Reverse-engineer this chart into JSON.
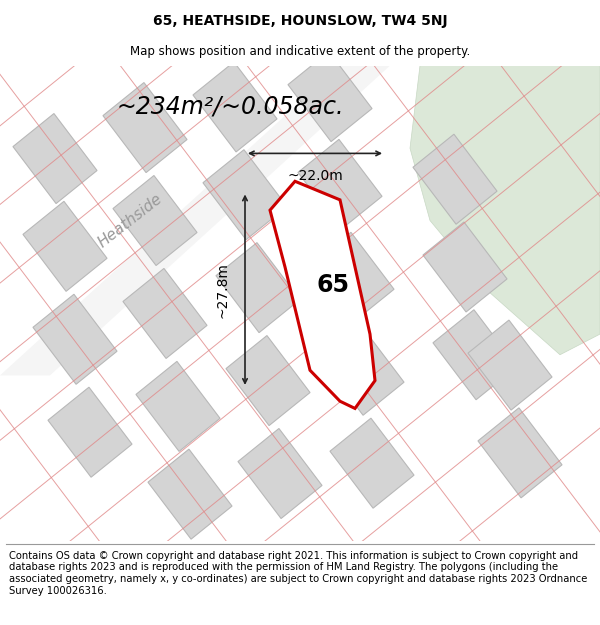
{
  "title": "65, HEATHSIDE, HOUNSLOW, TW4 5NJ",
  "subtitle": "Map shows position and indicative extent of the property.",
  "footer": "Contains OS data © Crown copyright and database right 2021. This information is subject to Crown copyright and database rights 2023 and is reproduced with the permission of HM Land Registry. The polygons (including the associated geometry, namely x, y co-ordinates) are subject to Crown copyright and database rights 2023 Ordnance Survey 100026316.",
  "area_label": "~234m²/~0.058ac.",
  "width_label": "~22.0m",
  "height_label": "~27.8m",
  "plot_number": "65",
  "bg_color": "#ebebeb",
  "building_fill": "#d4d4d4",
  "building_stroke": "#b8b8b8",
  "plot_fill": "white",
  "plot_stroke": "#cc0000",
  "dim_line_color": "#222222",
  "green_fill": "#dce8d8",
  "green_stroke": "#c8d8c4",
  "road_fill": "#f5f5f5",
  "red_line_color": "#e07070",
  "title_fontsize": 10,
  "subtitle_fontsize": 8.5,
  "area_label_fontsize": 17,
  "plot_number_fontsize": 17,
  "dim_label_fontsize": 10,
  "street_label_fontsize": 11,
  "footer_fontsize": 7.2
}
